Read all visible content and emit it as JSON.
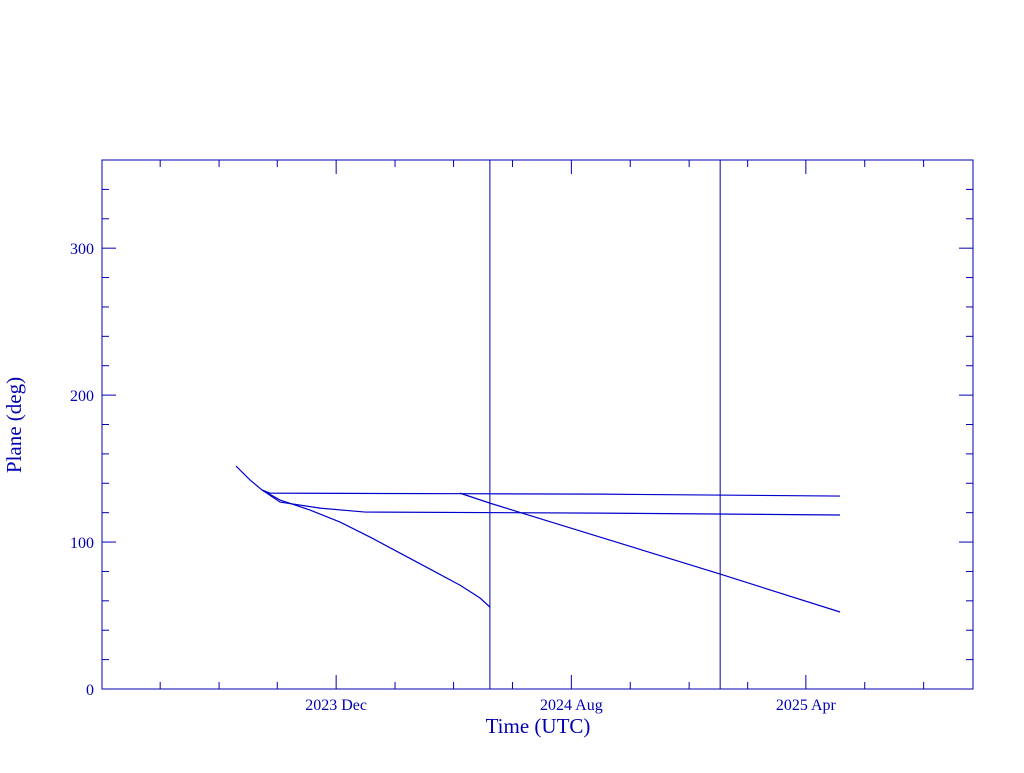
{
  "chart_data": {
    "type": "line",
    "xlabel": "Time (UTC)",
    "ylabel": "Plane (deg)",
    "xlim": [
      2023.251,
      2025.721
    ],
    "ylim": [
      0,
      360
    ],
    "xticks": [
      {
        "value": 2023.915,
        "label": "2023 Dec"
      },
      {
        "value": 2024.582,
        "label": "2024 Aug"
      },
      {
        "value": 2025.247,
        "label": "2025 Apr"
      }
    ],
    "xminorticks": [
      2023.416,
      2023.583,
      2023.748,
      2024.082,
      2024.248,
      2024.415,
      2024.749,
      2024.916,
      2025.082,
      2025.414,
      2025.581
    ],
    "yticks": [
      0,
      100,
      200,
      300
    ],
    "yminorticks": [
      20,
      40,
      60,
      80,
      120,
      140,
      160,
      180,
      220,
      240,
      260,
      280,
      320,
      340
    ],
    "vlines": [
      2024.351,
      2025.004
    ],
    "axis_color": "#0000b0",
    "series": [
      {
        "color": "#0000cc",
        "x": [
          2023.631,
          2023.671,
          2023.705,
          2023.756,
          2023.841,
          2023.926,
          2024.011,
          2024.096,
          2024.181,
          2024.266,
          2024.323,
          2024.351
        ],
        "values": [
          151.7,
          142.2,
          135.4,
          128.6,
          121.8,
          113.6,
          103.4,
          92.5,
          81.6,
          70.7,
          61.9,
          55.8
        ]
      },
      {
        "color": "#0000cc",
        "x": [
          2023.705,
          2023.727,
          2024.266,
          2024.663,
          2025.344
        ],
        "values": [
          135.4,
          133.3,
          132.9,
          132.6,
          131.3
        ]
      },
      {
        "color": "#0000cc",
        "x": [
          2023.705,
          2023.756,
          2023.869,
          2023.997,
          2024.663,
          2025.344
        ],
        "values": [
          135.4,
          127.2,
          123.1,
          120.4,
          119.7,
          118.4
        ]
      },
      {
        "color": "#0000cc",
        "x": [
          2024.266,
          2024.351,
          2024.663,
          2025.004,
          2025.344
        ],
        "values": [
          133.3,
          126.5,
          103.4,
          78.2,
          52.4
        ]
      }
    ]
  }
}
